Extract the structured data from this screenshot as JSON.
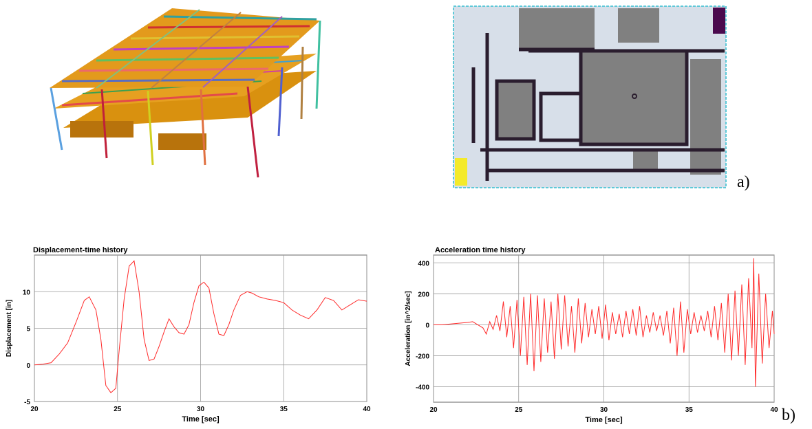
{
  "labels": {
    "a": "a)",
    "b": "b)"
  },
  "colors": {
    "slab": "#e39a1c",
    "slab_dark": "#c07a10",
    "trace": "#ff2a2a",
    "grid": "#9a9a9a",
    "plan_room": "#d7dfe9",
    "plan_gray": "#808080",
    "plan_wall": "#2a1d2e",
    "plan_border": "#5ec9d8",
    "plan_yellow": "#f4ea2a",
    "plan_purple": "#4a0a4e"
  },
  "chart_data": [
    {
      "type": "line",
      "title": "Displacement-time history",
      "xlabel": "Time [sec]",
      "ylabel": "Displacement [in]",
      "xlim": [
        20,
        40
      ],
      "ylim": [
        -5,
        15
      ],
      "xticks": [
        "20",
        "25",
        "30",
        "35",
        "40"
      ],
      "yticks": [
        "-5",
        "0",
        "5",
        "10"
      ],
      "xtick_values": [
        20,
        25,
        30,
        35,
        40
      ],
      "ytick_values": [
        -5,
        0,
        5,
        10
      ],
      "grid": true,
      "x": [
        20,
        20.5,
        21,
        21.5,
        22,
        22.5,
        23,
        23.3,
        23.7,
        24,
        24.3,
        24.6,
        24.9,
        25.1,
        25.4,
        25.7,
        26,
        26.3,
        26.6,
        26.9,
        27.2,
        27.5,
        27.8,
        28.1,
        28.4,
        28.7,
        29,
        29.3,
        29.6,
        29.9,
        30.2,
        30.5,
        30.8,
        31.1,
        31.4,
        31.7,
        32,
        32.4,
        32.8,
        33.1,
        33.5,
        34,
        34.5,
        35,
        35.5,
        36,
        36.5,
        37,
        37.5,
        38,
        38.5,
        39,
        39.5,
        40
      ],
      "y": [
        0,
        0.1,
        0.3,
        1.5,
        3,
        5.8,
        8.8,
        9.3,
        7.5,
        3.5,
        -2.8,
        -3.8,
        -3.2,
        2,
        9,
        13.5,
        14.2,
        10,
        3.5,
        0.6,
        0.8,
        2.5,
        4.5,
        6.3,
        5.2,
        4.4,
        4.2,
        5.5,
        8.5,
        10.8,
        11.3,
        10.5,
        7,
        4.2,
        4,
        5.5,
        7.5,
        9.5,
        10,
        9.8,
        9.3,
        9,
        8.8,
        8.5,
        7.5,
        6.8,
        6.3,
        7.5,
        9.2,
        8.8,
        7.5,
        8.2,
        8.9,
        8.7
      ]
    },
    {
      "type": "line",
      "title": "Acceleration time history",
      "xlabel": "Time [sec]",
      "ylabel": "Acceleration [in^2/sec]",
      "xlim": [
        20,
        40
      ],
      "ylim": [
        -500,
        450
      ],
      "xticks": [
        "20",
        "25",
        "30",
        "35",
        "40"
      ],
      "yticks": [
        "400",
        "200",
        "0",
        "-200",
        "-400"
      ],
      "xtick_values": [
        20,
        25,
        30,
        35,
        40
      ],
      "ytick_values": [
        400,
        200,
        0,
        -200,
        -400
      ],
      "grid": true,
      "x": [
        20,
        20.5,
        21,
        21.5,
        22,
        22.3,
        22.6,
        22.9,
        23.1,
        23.3,
        23.5,
        23.7,
        23.9,
        24.1,
        24.3,
        24.5,
        24.7,
        24.9,
        25.1,
        25.3,
        25.5,
        25.7,
        25.9,
        26.1,
        26.3,
        26.5,
        26.7,
        26.9,
        27.1,
        27.3,
        27.5,
        27.7,
        27.9,
        28.1,
        28.3,
        28.5,
        28.7,
        28.9,
        29.1,
        29.3,
        29.5,
        29.7,
        29.9,
        30.1,
        30.3,
        30.5,
        30.7,
        30.9,
        31.1,
        31.3,
        31.5,
        31.7,
        31.9,
        32.1,
        32.3,
        32.5,
        32.7,
        32.9,
        33.1,
        33.3,
        33.5,
        33.7,
        33.9,
        34.1,
        34.3,
        34.5,
        34.7,
        34.9,
        35.1,
        35.3,
        35.5,
        35.7,
        35.9,
        36.1,
        36.3,
        36.5,
        36.7,
        36.9,
        37.1,
        37.3,
        37.5,
        37.7,
        37.9,
        38.1,
        38.3,
        38.5,
        38.7,
        38.8,
        38.9,
        39.1,
        39.3,
        39.5,
        39.7,
        39.9,
        40
      ],
      "y": [
        0,
        0,
        5,
        10,
        15,
        20,
        0,
        -20,
        -60,
        20,
        -30,
        60,
        -40,
        150,
        -80,
        120,
        -150,
        160,
        -200,
        180,
        -260,
        200,
        -300,
        190,
        -240,
        170,
        -180,
        150,
        -220,
        200,
        -160,
        190,
        -140,
        120,
        -180,
        170,
        -120,
        140,
        -80,
        100,
        -60,
        120,
        -90,
        130,
        -100,
        80,
        -60,
        70,
        -80,
        90,
        -60,
        100,
        -70,
        120,
        -80,
        60,
        -50,
        80,
        -40,
        60,
        -70,
        90,
        -120,
        110,
        -200,
        150,
        -180,
        100,
        -60,
        80,
        -50,
        60,
        -40,
        90,
        -80,
        120,
        -100,
        140,
        -180,
        200,
        -230,
        220,
        -200,
        260,
        -260,
        300,
        -150,
        430,
        -400,
        330,
        -250,
        200,
        -150,
        90,
        -60
      ]
    }
  ]
}
